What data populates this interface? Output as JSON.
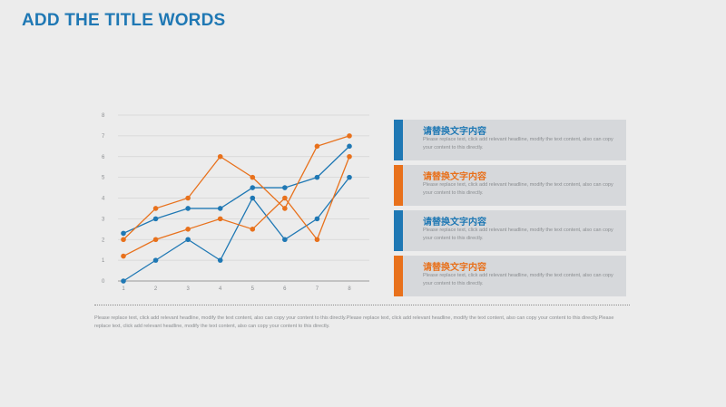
{
  "page": {
    "title": "ADD THE TITLE WORDS"
  },
  "cards": [
    {
      "title": "请替换文字内容",
      "desc": "Please replace text, click add relevant headline, modify the text content, also can copy your content to this directly.",
      "color": "#1f78b4"
    },
    {
      "title": "请替换文字内容",
      "desc": "Please replace text, click add relevant headline, modify the text content, also can copy your content to this directly.",
      "color": "#e8711c"
    },
    {
      "title": "请替换文字内容",
      "desc": "Please replace text, click add relevant headline, modify the text content, also can copy your content to this directly.",
      "color": "#1f78b4"
    },
    {
      "title": "请替换文字内容",
      "desc": "Please replace text, click add relevant headline, modify the text content, also can copy your content to this directly.",
      "color": "#e8711c"
    }
  ],
  "footer": {
    "text": "Please replace text, click add relevant headline, modify the text content, also can copy your content to this directly.Please replace text, click add relevant headline, modify the text content, also can copy your content to this directly.Please replace text, click add relevant headline, modify the text content, also can copy your content to this directly."
  },
  "chart_data": {
    "type": "line",
    "x": [
      1,
      2,
      3,
      4,
      5,
      6,
      7,
      8
    ],
    "xlim": [
      1,
      8
    ],
    "ylim": [
      0,
      8
    ],
    "yticks": [
      0,
      1,
      2,
      3,
      4,
      5,
      6,
      7,
      8
    ],
    "grid": true,
    "series": [
      {
        "color": "#1f78b4",
        "values": [
          2.3,
          3,
          3.5,
          3.5,
          4.5,
          4.5,
          5,
          6.5
        ]
      },
      {
        "color": "#1f78b4",
        "values": [
          0,
          1,
          2,
          1,
          4,
          2,
          3,
          5
        ]
      },
      {
        "color": "#e8711c",
        "values": [
          2,
          3.5,
          4,
          6,
          5,
          3.5,
          6.5,
          7
        ]
      },
      {
        "color": "#e8711c",
        "values": [
          1.2,
          2,
          2.5,
          3,
          2.5,
          4,
          2,
          6
        ]
      }
    ]
  }
}
